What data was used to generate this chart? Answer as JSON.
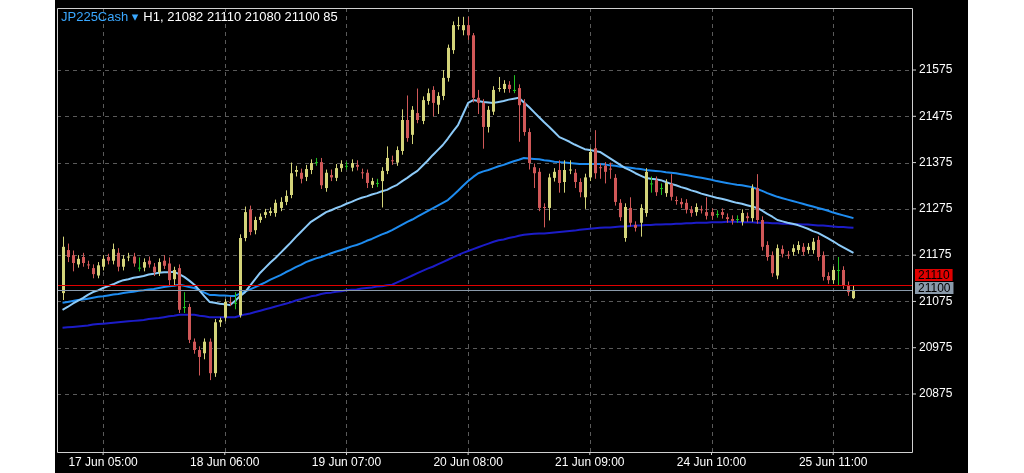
{
  "chart_data": {
    "type": "candlestick",
    "title": "JP225Cash ▾",
    "subtitle": "H1, 21082 21110 21080 21100 85",
    "categories": [
      null,
      null,
      null,
      null,
      null,
      null,
      null,
      null,
      "17 Jun 05:00",
      null,
      null,
      null,
      null,
      null,
      null,
      null,
      null,
      null,
      null,
      null,
      null,
      null,
      null,
      null,
      null,
      null,
      null,
      null,
      null,
      null,
      null,
      null,
      "18 Jun 06:00",
      null,
      null,
      null,
      null,
      null,
      null,
      null,
      null,
      null,
      null,
      null,
      null,
      null,
      null,
      null,
      null,
      null,
      null,
      null,
      null,
      null,
      null,
      null,
      "19 Jun 07:00",
      null,
      null,
      null,
      null,
      null,
      null,
      null,
      null,
      null,
      null,
      null,
      null,
      null,
      null,
      null,
      null,
      null,
      null,
      null,
      null,
      null,
      null,
      null,
      "20 Jun 08:00",
      null,
      null,
      null,
      null,
      null,
      null,
      null,
      null,
      null,
      null,
      null,
      null,
      null,
      null,
      null,
      null,
      null,
      null,
      null,
      null,
      null,
      null,
      null,
      "21 Jun 09:00",
      null,
      null,
      null,
      null,
      null,
      null,
      null,
      null,
      null,
      null,
      null,
      null,
      null,
      null,
      null,
      null,
      null,
      null,
      null,
      null,
      null,
      null,
      null,
      "24 Jun 10:00",
      null,
      null,
      null,
      null,
      null,
      null,
      null,
      null,
      null,
      null,
      null,
      null,
      null,
      null,
      null,
      null,
      null,
      null,
      null,
      null,
      null,
      null,
      null,
      "25 Jun 11:00",
      null,
      null,
      null,
      null
    ],
    "ylim": [
      20754,
      21709
    ],
    "yticks": [
      20875,
      20975,
      21075,
      21175,
      21275,
      21375,
      21475,
      21575
    ],
    "grid": true,
    "ref_lines": [
      {
        "axis": "y",
        "value": 21110,
        "label": "21110",
        "color": "#e00000"
      },
      {
        "axis": "y",
        "value": 21100,
        "label": "21100",
        "color": "#8a9aaa"
      }
    ],
    "series": [
      {
        "ohlc": [
          [
            21093,
            21215,
            21078,
            21193
          ],
          [
            21186,
            21200,
            21160,
            21171
          ],
          [
            21175,
            21185,
            21140,
            21158
          ],
          [
            21155,
            21175,
            21148,
            21167
          ],
          [
            21171,
            21180,
            21150,
            21158
          ],
          [
            21155,
            21163,
            21145,
            21153
          ],
          [
            21147,
            21155,
            21125,
            21134
          ],
          [
            21131,
            21160,
            21125,
            21153
          ],
          [
            21150,
            21175,
            21142,
            21167
          ],
          [
            21171,
            21178,
            21155,
            21163
          ],
          [
            21163,
            21200,
            21155,
            21188
          ],
          [
            21180,
            21190,
            21140,
            21150
          ],
          [
            21150,
            21175,
            21142,
            21167
          ],
          [
            21170,
            21180,
            21162,
            21172
          ],
          [
            21172,
            21180,
            21150,
            21157
          ],
          [
            21148,
            21170,
            21140,
            21148
          ],
          [
            21148,
            21168,
            21140,
            21160
          ],
          [
            21163,
            21172,
            21148,
            21155
          ],
          [
            21150,
            21158,
            21130,
            21138
          ],
          [
            21138,
            21168,
            21130,
            21160
          ],
          [
            21163,
            21175,
            21145,
            21152
          ],
          [
            21157,
            21170,
            21110,
            21121
          ],
          [
            21123,
            21150,
            21110,
            21143
          ],
          [
            21147,
            21155,
            21050,
            21057
          ],
          [
            21063,
            21095,
            21050,
            21063
          ],
          [
            21063,
            21070,
            20985,
            20992
          ],
          [
            20988,
            20995,
            20962,
            20970
          ],
          [
            20970,
            20978,
            20915,
            20955
          ],
          [
            20963,
            20995,
            20950,
            20988
          ],
          [
            20988,
            20995,
            20905,
            20920
          ],
          [
            20920,
            21037,
            20912,
            21030
          ],
          [
            21030,
            21040,
            21020,
            21035
          ],
          [
            21040,
            21080,
            21032,
            21074
          ],
          [
            21074,
            21085,
            21065,
            21072
          ],
          [
            21072,
            21095,
            21058,
            21072
          ],
          [
            21045,
            21220,
            21040,
            21212
          ],
          [
            21212,
            21280,
            21205,
            21268
          ],
          [
            21273,
            21282,
            21218,
            21225
          ],
          [
            21229,
            21258,
            21220,
            21251
          ],
          [
            21251,
            21265,
            21245,
            21258
          ],
          [
            21262,
            21275,
            21255,
            21268
          ],
          [
            21266,
            21278,
            21260,
            21270
          ],
          [
            21266,
            21295,
            21258,
            21288
          ],
          [
            21277,
            21300,
            21270,
            21290
          ],
          [
            21290,
            21315,
            21283,
            21303
          ],
          [
            21305,
            21375,
            21298,
            21352
          ],
          [
            21355,
            21368,
            21345,
            21359
          ],
          [
            21353,
            21362,
            21330,
            21340
          ],
          [
            21344,
            21370,
            21335,
            21361
          ],
          [
            21359,
            21382,
            21350,
            21374
          ],
          [
            21376,
            21385,
            21368,
            21376
          ],
          [
            21376,
            21385,
            21318,
            21326
          ],
          [
            21320,
            21360,
            21312,
            21353
          ],
          [
            21348,
            21360,
            21335,
            21343
          ],
          [
            21342,
            21372,
            21335,
            21363
          ],
          [
            21363,
            21380,
            21355,
            21372
          ],
          [
            21368,
            21377,
            21360,
            21368
          ],
          [
            21364,
            21382,
            21356,
            21374
          ],
          [
            21370,
            21380,
            21358,
            21366
          ],
          [
            21354,
            21362,
            21340,
            21353
          ],
          [
            21353,
            21360,
            21320,
            21331
          ],
          [
            21327,
            21342,
            21320,
            21335
          ],
          [
            21331,
            21340,
            21322,
            21331
          ],
          [
            21335,
            21365,
            21278,
            21357
          ],
          [
            21357,
            21410,
            21350,
            21385
          ],
          [
            21380,
            21390,
            21370,
            21378
          ],
          [
            21375,
            21410,
            21368,
            21402
          ],
          [
            21400,
            21490,
            21392,
            21467
          ],
          [
            21467,
            21520,
            21420,
            21428
          ],
          [
            21435,
            21497,
            21415,
            21489
          ],
          [
            21482,
            21535,
            21460,
            21467
          ],
          [
            21465,
            21518,
            21458,
            21510
          ],
          [
            21508,
            21535,
            21500,
            21525
          ],
          [
            21532,
            21540,
            21475,
            21504
          ],
          [
            21500,
            21527,
            21480,
            21519
          ],
          [
            21519,
            21575,
            21510,
            21558
          ],
          [
            21558,
            21630,
            21550,
            21623
          ],
          [
            21618,
            21680,
            21610,
            21672
          ],
          [
            21670,
            21690,
            21662,
            21672
          ],
          [
            21661,
            21690,
            21650,
            21672
          ],
          [
            21672,
            21690,
            21640,
            21650
          ],
          [
            21650,
            21655,
            21505,
            21515
          ],
          [
            21515,
            21532,
            21480,
            21504
          ],
          [
            21504,
            21512,
            21405,
            21452
          ],
          [
            21452,
            21497,
            21440,
            21489
          ],
          [
            21485,
            21540,
            21478,
            21532
          ],
          [
            21535,
            21560,
            21528,
            21536
          ],
          [
            21534,
            21553,
            21526,
            21545
          ],
          [
            21543,
            21551,
            21526,
            21534
          ],
          [
            21532,
            21564,
            21525,
            21532
          ],
          [
            21536,
            21544,
            21420,
            21499
          ],
          [
            21504,
            21512,
            21433,
            21441
          ],
          [
            21441,
            21449,
            21360,
            21374
          ],
          [
            21365,
            21373,
            21320,
            21352
          ],
          [
            21355,
            21363,
            21270,
            21277
          ],
          [
            21279,
            21287,
            21235,
            21277
          ],
          [
            21277,
            21351,
            21250,
            21343
          ],
          [
            21342,
            21363,
            21334,
            21355
          ],
          [
            21359,
            21380,
            21310,
            21331
          ],
          [
            21333,
            21380,
            21310,
            21359
          ],
          [
            21358,
            21380,
            21350,
            21360
          ],
          [
            21353,
            21361,
            21320,
            21333
          ],
          [
            21333,
            21341,
            21300,
            21311
          ],
          [
            21300,
            21351,
            21275,
            21343
          ],
          [
            21343,
            21406,
            21335,
            21398
          ],
          [
            21406,
            21445,
            21340,
            21352
          ],
          [
            21365,
            21373,
            21340,
            21363
          ],
          [
            21368,
            21376,
            21330,
            21355
          ],
          [
            21362,
            21375,
            21340,
            21361
          ],
          [
            21342,
            21350,
            21282,
            21290
          ],
          [
            21288,
            21296,
            21249,
            21257
          ],
          [
            21212,
            21287,
            21204,
            21279
          ],
          [
            21277,
            21300,
            21237,
            21245
          ],
          [
            21240,
            21248,
            21226,
            21234
          ],
          [
            21245,
            21285,
            21215,
            21277
          ],
          [
            21266,
            21363,
            21258,
            21355
          ],
          [
            21330,
            21345,
            21310,
            21330
          ],
          [
            21337,
            21345,
            21303,
            21311
          ],
          [
            21320,
            21330,
            21305,
            21320
          ],
          [
            21309,
            21339,
            21301,
            21331
          ],
          [
            21329,
            21350,
            21293,
            21301
          ],
          [
            21294,
            21302,
            21284,
            21292
          ],
          [
            21290,
            21298,
            21277,
            21285
          ],
          [
            21288,
            21296,
            21265,
            21273
          ],
          [
            21273,
            21281,
            21258,
            21266
          ],
          [
            21268,
            21287,
            21260,
            21279
          ],
          [
            21274,
            21282,
            21265,
            21273
          ],
          [
            21268,
            21300,
            21252,
            21260
          ],
          [
            21268,
            21276,
            21252,
            21260
          ],
          [
            21264,
            21272,
            21256,
            21264
          ],
          [
            21268,
            21276,
            21254,
            21262
          ],
          [
            21257,
            21265,
            21245,
            21253
          ],
          [
            21253,
            21261,
            21241,
            21249
          ],
          [
            21253,
            21261,
            21245,
            21253
          ],
          [
            21247,
            21274,
            21239,
            21266
          ],
          [
            21259,
            21267,
            21247,
            21255
          ],
          [
            21255,
            21328,
            21247,
            21320
          ],
          [
            21320,
            21350,
            21243,
            21251
          ],
          [
            21251,
            21259,
            21185,
            21193
          ],
          [
            21197,
            21205,
            21163,
            21171
          ],
          [
            21175,
            21183,
            21128,
            21136
          ],
          [
            21131,
            21198,
            21123,
            21190
          ],
          [
            21188,
            21196,
            21170,
            21178
          ],
          [
            21176,
            21184,
            21167,
            21175
          ],
          [
            21182,
            21198,
            21174,
            21190
          ],
          [
            21186,
            21205,
            21178,
            21197
          ],
          [
            21193,
            21201,
            21174,
            21182
          ],
          [
            21186,
            21201,
            21178,
            21193
          ],
          [
            21186,
            21212,
            21178,
            21204
          ],
          [
            21208,
            21216,
            21163,
            21171
          ],
          [
            21175,
            21183,
            21120,
            21128
          ],
          [
            21130,
            21138,
            21113,
            21121
          ],
          [
            21121,
            21151,
            21113,
            21143
          ],
          [
            21143,
            21171,
            21110,
            21143
          ],
          [
            21143,
            21151,
            21102,
            21110
          ],
          [
            21110,
            21118,
            21087,
            21095
          ],
          [
            21082,
            21110,
            21080,
            21100
          ]
        ],
        "colors": [
          "#d4d47a",
          "#d05858",
          "#d05858",
          "#d4d47a",
          "#d05858",
          "#d05858",
          "#d05858",
          "#d4d47a",
          "#d4d47a",
          "#d05858",
          "#d4d47a",
          "#d05858",
          "#d4d47a",
          "#d4d47a",
          "#d05858",
          "#20c020",
          "#d4d47a",
          "#d05858",
          "#d05858",
          "#d4d47a",
          "#d05858",
          "#d05858",
          "#d4d47a",
          "#d05858",
          "#20c020",
          "#d05858",
          "#d05858",
          "#d05858",
          "#d4d47a",
          "#d05858",
          "#d4d47a",
          "#d4d47a",
          "#d4d47a",
          "#d05858",
          "#20c020",
          "#d4d47a",
          "#d4d47a",
          "#d05858",
          "#d4d47a",
          "#d4d47a",
          "#d4d47a",
          "#d4d47a",
          "#d4d47a",
          "#d4d47a",
          "#d4d47a",
          "#d4d47a",
          "#d4d47a",
          "#d05858",
          "#d4d47a",
          "#d4d47a",
          "#20c020",
          "#d05858",
          "#d4d47a",
          "#d05858",
          "#d4d47a",
          "#d4d47a",
          "#20c020",
          "#d4d47a",
          "#d05858",
          "#d05858",
          "#d05858",
          "#d4d47a",
          "#20c020",
          "#d4d47a",
          "#d4d47a",
          "#d05858",
          "#d4d47a",
          "#d4d47a",
          "#d05858",
          "#d4d47a",
          "#d05858",
          "#d4d47a",
          "#d4d47a",
          "#d05858",
          "#d4d47a",
          "#d4d47a",
          "#d4d47a",
          "#d4d47a",
          "#d4d47a",
          "#d4d47a",
          "#d05858",
          "#d05858",
          "#d05858",
          "#d05858",
          "#d4d47a",
          "#d4d47a",
          "#d4d47a",
          "#d4d47a",
          "#d05858",
          "#20c020",
          "#d05858",
          "#d05858",
          "#d05858",
          "#d05858",
          "#d05858",
          "#d05858",
          "#d4d47a",
          "#d4d47a",
          "#d05858",
          "#d4d47a",
          "#d4d47a",
          "#d05858",
          "#d05858",
          "#d4d47a",
          "#d4d47a",
          "#d05858",
          "#d05858",
          "#d05858",
          "#d05858",
          "#d05858",
          "#d05858",
          "#d4d47a",
          "#d05858",
          "#d05858",
          "#d4d47a",
          "#d4d47a",
          "#20c020",
          "#d05858",
          "#20c020",
          "#d4d47a",
          "#d05858",
          "#d05858",
          "#d05858",
          "#d05858",
          "#d05858",
          "#d4d47a",
          "#d05858",
          "#d05858",
          "#d05858",
          "#20c020",
          "#d05858",
          "#d05858",
          "#d05858",
          "#20c020",
          "#d4d47a",
          "#d05858",
          "#d4d47a",
          "#d05858",
          "#d05858",
          "#d05858",
          "#d05858",
          "#d4d47a",
          "#d05858",
          "#d05858",
          "#d4d47a",
          "#d4d47a",
          "#d05858",
          "#d4d47a",
          "#d4d47a",
          "#d05858",
          "#d05858",
          "#d05858",
          "#d4d47a",
          "#20c020",
          "#d05858",
          "#d05858",
          "#d4d47a"
        ]
      },
      {
        "type": "line",
        "color": "#8ccaf8",
        "values": [
          21057,
          21063,
          21070,
          21076,
          21082,
          21089,
          21095,
          21099,
          21104,
          21108,
          21112,
          21117,
          21121,
          21123,
          21126,
          21128,
          21130,
          21133,
          21135,
          21137,
          21138,
          21138,
          21139,
          21134,
          21128,
          21120,
          21111,
          21099,
          21086,
          21074,
          21072,
          21070,
          21069,
          21067,
          21076,
          21086,
          21095,
          21109,
          21123,
          21137,
          21148,
          21159,
          21169,
          21180,
          21191,
          21202,
          21214,
          21225,
          21236,
          21247,
          21254,
          21261,
          21268,
          21272,
          21277,
          21281,
          21286,
          21290,
          21295,
          21299,
          21302,
          21306,
          21309,
          21313,
          21316,
          21322,
          21327,
          21335,
          21342,
          21350,
          21357,
          21368,
          21379,
          21391,
          21402,
          21413,
          21427,
          21442,
          21456,
          21480,
          21504,
          21510,
          21508,
          21506,
          21505,
          21504,
          21506,
          21508,
          21511,
          21513,
          21515,
          21505,
          21495,
          21484,
          21473,
          21462,
          21452,
          21441,
          21430,
          21425,
          21420,
          21414,
          21409,
          21404,
          21402,
          21400,
          21398,
          21391,
          21384,
          21377,
          21370,
          21363,
          21358,
          21352,
          21347,
          21342,
          21340,
          21339,
          21337,
          21333,
          21329,
          21326,
          21322,
          21319,
          21315,
          21312,
          21308,
          21305,
          21302,
          21299,
          21297,
          21294,
          21291,
          21288,
          21286,
          21283,
          21280,
          21277,
          21271,
          21264,
          21258,
          21251,
          21248,
          21245,
          21243,
          21240,
          21236,
          21232,
          21227,
          21223,
          21217,
          21211,
          21205,
          21198,
          21192,
          21186,
          21180
        ]
      },
      {
        "type": "line",
        "color": "#1e8cf0",
        "values": [
          21072,
          21074,
          21076,
          21078,
          21079,
          21081,
          21083,
          21085,
          21086,
          21088,
          21090,
          21091,
          21093,
          21095,
          21096,
          21098,
          21099,
          21101,
          21102,
          21104,
          21106,
          21108,
          21109,
          21111,
          21109,
          21106,
          21104,
          21099,
          21094,
          21089,
          21089,
          21088,
          21088,
          21087,
          21087,
          21092,
          21096,
          21101,
          21106,
          21111,
          21116,
          21122,
          21127,
          21132,
          21138,
          21143,
          21149,
          21154,
          21160,
          21164,
          21168,
          21171,
          21175,
          21179,
          21183,
          21186,
          21190,
          21194,
          21197,
          21201,
          21206,
          21210,
          21215,
          21220,
          21224,
          21229,
          21235,
          21241,
          21247,
          21252,
          21258,
          21264,
          21270,
          21276,
          21282,
          21288,
          21294,
          21304,
          21314,
          21325,
          21335,
          21344,
          21352,
          21356,
          21359,
          21363,
          21367,
          21370,
          21374,
          21378,
          21381,
          21385,
          21384,
          21383,
          21382,
          21380,
          21379,
          21377,
          21376,
          21375,
          21374,
          21373,
          21372,
          21372,
          21372,
          21372,
          21372,
          21371,
          21369,
          21368,
          21366,
          21365,
          21364,
          21362,
          21361,
          21359,
          21358,
          21357,
          21356,
          21354,
          21353,
          21352,
          21350,
          21348,
          21346,
          21344,
          21342,
          21340,
          21338,
          21335,
          21333,
          21331,
          21329,
          21327,
          21326,
          21324,
          21322,
          21318,
          21314,
          21309,
          21305,
          21301,
          21298,
          21295,
          21292,
          21289,
          21286,
          21283,
          21280,
          21277,
          21274,
          21271,
          21267,
          21264,
          21261,
          21258,
          21255
        ]
      },
      {
        "type": "line",
        "color": "#1c1cc8",
        "values": [
          21018,
          21019,
          21020,
          21021,
          21022,
          21023,
          21025,
          21026,
          21027,
          21028,
          21029,
          21030,
          21031,
          21032,
          21033,
          21034,
          21035,
          21037,
          21038,
          21039,
          21041,
          21043,
          21044,
          21046,
          21046,
          21046,
          21046,
          21044,
          21043,
          21041,
          21041,
          21041,
          21041,
          21041,
          21041,
          21044,
          21047,
          21049,
          21052,
          21055,
          21058,
          21061,
          21064,
          21067,
          21070,
          21073,
          21077,
          21080,
          21083,
          21086,
          21088,
          21091,
          21093,
          21094,
          21096,
          21097,
          21099,
          21100,
          21101,
          21103,
          21104,
          21105,
          21107,
          21108,
          21110,
          21111,
          21116,
          21121,
          21126,
          21131,
          21136,
          21141,
          21146,
          21150,
          21155,
          21160,
          21165,
          21170,
          21175,
          21180,
          21184,
          21188,
          21192,
          21196,
          21200,
          21204,
          21207,
          21209,
          21212,
          21214,
          21217,
          21219,
          21220,
          21221,
          21222,
          21222,
          21223,
          21224,
          21225,
          21226,
          21227,
          21228,
          21230,
          21231,
          21232,
          21233,
          21234,
          21235,
          21235,
          21236,
          21237,
          21237,
          21238,
          21239,
          21239,
          21240,
          21240,
          21241,
          21241,
          21242,
          21242,
          21243,
          21243,
          21244,
          21244,
          21245,
          21245,
          21245,
          21246,
          21246,
          21246,
          21247,
          21247,
          21247,
          21246,
          21246,
          21246,
          21245,
          21245,
          21245,
          21244,
          21244,
          21243,
          21243,
          21242,
          21242,
          21241,
          21241,
          21240,
          21239,
          21239,
          21238,
          21237,
          21236,
          21236,
          21235,
          21234
        ]
      }
    ]
  }
}
